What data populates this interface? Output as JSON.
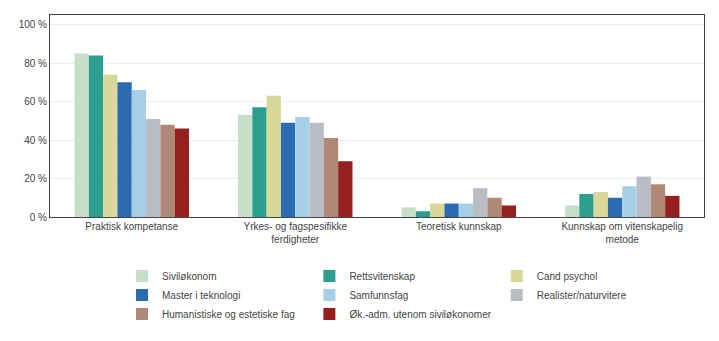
{
  "chart_data": {
    "type": "bar",
    "categories": [
      "Praktisk kompetanse",
      "Yrkes- og fagspesifikke\nferdigheter",
      "Teoretisk kunnskap",
      "Kunnskap om vitenskapelig\nmetode"
    ],
    "series": [
      {
        "name": "Siviløkonom",
        "color": "#c5dfc8",
        "values": [
          85,
          53,
          5,
          6
        ]
      },
      {
        "name": "Rettsvitenskap",
        "color": "#2e9e8e",
        "values": [
          84,
          57,
          3,
          12
        ]
      },
      {
        "name": "Cand psychol",
        "color": "#d8d898",
        "values": [
          74,
          63,
          7,
          13
        ]
      },
      {
        "name": "Master i teknologi",
        "color": "#2b6cb0",
        "values": [
          70,
          49,
          7,
          10
        ]
      },
      {
        "name": "Samfunnsfag",
        "color": "#a8cfe8",
        "values": [
          66,
          52,
          7,
          16
        ]
      },
      {
        "name": "Realister/naturvitere",
        "color": "#b8bec4",
        "values": [
          51,
          49,
          15,
          21
        ]
      },
      {
        "name": "Humanistiske og estetiske fag",
        "color": "#b08878",
        "values": [
          48,
          41,
          10,
          17
        ]
      },
      {
        "name": "Øk.-adm. utenom siviløkonomer",
        "color": "#962020",
        "values": [
          46,
          29,
          6,
          11
        ]
      }
    ],
    "ylim": [
      0,
      105
    ],
    "yticks": [
      {
        "value": 0,
        "label": "0 %"
      },
      {
        "value": 20,
        "label": "20 %"
      },
      {
        "value": 40,
        "label": "40 %"
      },
      {
        "value": 60,
        "label": "60 %"
      },
      {
        "value": 80,
        "label": "80 %"
      },
      {
        "value": 100,
        "label": "100 %"
      }
    ],
    "grid": true,
    "legend": "bottom"
  }
}
